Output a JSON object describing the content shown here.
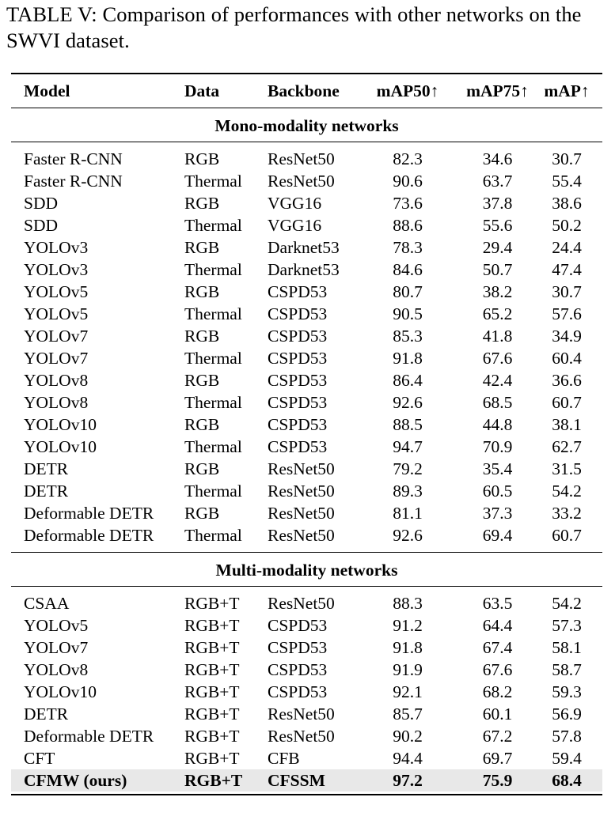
{
  "caption": "TABLE V: Comparison of performances with other networks on the SWVI dataset.",
  "table": {
    "headers": {
      "model": "Model",
      "data": "Data",
      "backbone": "Backbone",
      "map50": "mAP50↑",
      "map75": "mAP75↑",
      "map": "mAP↑"
    },
    "sections": [
      {
        "title": "Mono-modality networks",
        "rows": [
          {
            "model": "Faster R-CNN",
            "data": "RGB",
            "backbone": "ResNet50",
            "map50": "82.3",
            "map75": "34.6",
            "map": "30.7"
          },
          {
            "model": "Faster R-CNN",
            "data": "Thermal",
            "backbone": "ResNet50",
            "map50": "90.6",
            "map75": "63.7",
            "map": "55.4"
          },
          {
            "model": "SDD",
            "data": "RGB",
            "backbone": "VGG16",
            "map50": "73.6",
            "map75": "37.8",
            "map": "38.6"
          },
          {
            "model": "SDD",
            "data": "Thermal",
            "backbone": "VGG16",
            "map50": "88.6",
            "map75": "55.6",
            "map": "50.2"
          },
          {
            "model": "YOLOv3",
            "data": "RGB",
            "backbone": "Darknet53",
            "map50": "78.3",
            "map75": "29.4",
            "map": "24.4"
          },
          {
            "model": "YOLOv3",
            "data": "Thermal",
            "backbone": "Darknet53",
            "map50": "84.6",
            "map75": "50.7",
            "map": "47.4"
          },
          {
            "model": "YOLOv5",
            "data": "RGB",
            "backbone": "CSPD53",
            "map50": "80.7",
            "map75": "38.2",
            "map": "30.7"
          },
          {
            "model": "YOLOv5",
            "data": "Thermal",
            "backbone": "CSPD53",
            "map50": "90.5",
            "map75": "65.2",
            "map": "57.6"
          },
          {
            "model": "YOLOv7",
            "data": "RGB",
            "backbone": "CSPD53",
            "map50": "85.3",
            "map75": "41.8",
            "map": "34.9"
          },
          {
            "model": "YOLOv7",
            "data": "Thermal",
            "backbone": "CSPD53",
            "map50": "91.8",
            "map75": "67.6",
            "map": "60.4"
          },
          {
            "model": "YOLOv8",
            "data": "RGB",
            "backbone": "CSPD53",
            "map50": "86.4",
            "map75": "42.4",
            "map": "36.6"
          },
          {
            "model": "YOLOv8",
            "data": "Thermal",
            "backbone": "CSPD53",
            "map50": "92.6",
            "map75": "68.5",
            "map": "60.7"
          },
          {
            "model": "YOLOv10",
            "data": "RGB",
            "backbone": "CSPD53",
            "map50": "88.5",
            "map75": "44.8",
            "map": "38.1"
          },
          {
            "model": "YOLOv10",
            "data": "Thermal",
            "backbone": "CSPD53",
            "map50": "94.7",
            "map75": "70.9",
            "map": "62.7"
          },
          {
            "model": "DETR",
            "data": "RGB",
            "backbone": "ResNet50",
            "map50": "79.2",
            "map75": "35.4",
            "map": "31.5"
          },
          {
            "model": "DETR",
            "data": "Thermal",
            "backbone": "ResNet50",
            "map50": "89.3",
            "map75": "60.5",
            "map": "54.2"
          },
          {
            "model": "Deformable DETR",
            "data": "RGB",
            "backbone": "ResNet50",
            "map50": "81.1",
            "map75": "37.3",
            "map": "33.2"
          },
          {
            "model": "Deformable DETR",
            "data": "Thermal",
            "backbone": "ResNet50",
            "map50": "92.6",
            "map75": "69.4",
            "map": "60.7"
          }
        ]
      },
      {
        "title": "Multi-modality networks",
        "rows": [
          {
            "model": "CSAA",
            "data": "RGB+T",
            "backbone": "ResNet50",
            "map50": "88.3",
            "map75": "63.5",
            "map": "54.2"
          },
          {
            "model": "YOLOv5",
            "data": "RGB+T",
            "backbone": "CSPD53",
            "map50": "91.2",
            "map75": "64.4",
            "map": "57.3"
          },
          {
            "model": "YOLOv7",
            "data": "RGB+T",
            "backbone": "CSPD53",
            "map50": "91.8",
            "map75": "67.4",
            "map": "58.1"
          },
          {
            "model": "YOLOv8",
            "data": "RGB+T",
            "backbone": "CSPD53",
            "map50": "91.9",
            "map75": "67.6",
            "map": "58.7"
          },
          {
            "model": "YOLOv10",
            "data": "RGB+T",
            "backbone": "CSPD53",
            "map50": "92.1",
            "map75": "68.2",
            "map": "59.3"
          },
          {
            "model": "DETR",
            "data": "RGB+T",
            "backbone": "ResNet50",
            "map50": "85.7",
            "map75": "60.1",
            "map": "56.9"
          },
          {
            "model": "Deformable DETR",
            "data": "RGB+T",
            "backbone": "ResNet50",
            "map50": "90.2",
            "map75": "67.2",
            "map": "57.8"
          },
          {
            "model": "CFT",
            "data": "RGB+T",
            "backbone": "CFB",
            "map50": "94.4",
            "map75": "69.7",
            "map": "59.4"
          },
          {
            "model": "CFMW (ours)",
            "data": "RGB+T",
            "backbone": "CFSSM",
            "map50": "97.2",
            "map75": "75.9",
            "map": "68.4",
            "highlight": true
          }
        ]
      }
    ]
  }
}
